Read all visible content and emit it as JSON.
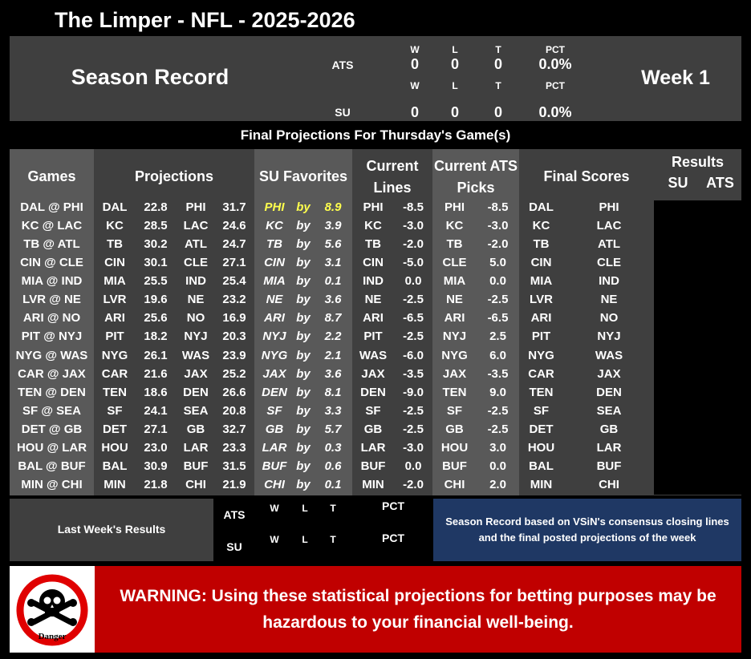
{
  "title": "The Limper - NFL - 2025-2026",
  "season": {
    "label": "Season Record",
    "week": "Week 1",
    "ats": {
      "label": "ATS",
      "w": "0",
      "l": "0",
      "t": "0",
      "pct": "0.0%"
    },
    "su": {
      "label": "SU",
      "w": "0",
      "l": "0",
      "t": "0",
      "pct": "0.0%"
    },
    "col_w": "W",
    "col_l": "L",
    "col_t": "T",
    "col_pct": "PCT"
  },
  "banner": "Final Projections For Thursday's Game(s)",
  "headers": {
    "games": "Games",
    "projections": "Projections",
    "su_favorites": "SU Favorites",
    "current_lines_1": "Current",
    "current_lines_2": "Lines",
    "ats_picks_1": "Current ATS",
    "ats_picks_2": "Picks",
    "final_scores": "Final Scores",
    "results": "Results",
    "results_su": "SU",
    "results_ats": "ATS"
  },
  "by_word": "by",
  "games": [
    {
      "game": "DAL @ PHI",
      "t1": "DAL",
      "s1": "22.8",
      "t2": "PHI",
      "s2": "31.7",
      "fav": "PHI",
      "margin": "8.9",
      "line_team": "PHI",
      "line": "-8.5",
      "pick_team": "PHI",
      "pick": "-8.5",
      "f1": "DAL",
      "f2": "PHI",
      "hl": true
    },
    {
      "game": "KC @ LAC",
      "t1": "KC",
      "s1": "28.5",
      "t2": "LAC",
      "s2": "24.6",
      "fav": "KC",
      "margin": "3.9",
      "line_team": "KC",
      "line": "-3.0",
      "pick_team": "KC",
      "pick": "-3.0",
      "f1": "KC",
      "f2": "LAC"
    },
    {
      "game": "TB @ ATL",
      "t1": "TB",
      "s1": "30.2",
      "t2": "ATL",
      "s2": "24.7",
      "fav": "TB",
      "margin": "5.6",
      "line_team": "TB",
      "line": "-2.0",
      "pick_team": "TB",
      "pick": "-2.0",
      "f1": "TB",
      "f2": "ATL"
    },
    {
      "game": "CIN @ CLE",
      "t1": "CIN",
      "s1": "30.1",
      "t2": "CLE",
      "s2": "27.1",
      "fav": "CIN",
      "margin": "3.1",
      "line_team": "CIN",
      "line": "-5.0",
      "pick_team": "CLE",
      "pick": "5.0",
      "f1": "CIN",
      "f2": "CLE"
    },
    {
      "game": "MIA @ IND",
      "t1": "MIA",
      "s1": "25.5",
      "t2": "IND",
      "s2": "25.4",
      "fav": "MIA",
      "margin": "0.1",
      "line_team": "IND",
      "line": "0.0",
      "pick_team": "MIA",
      "pick": "0.0",
      "f1": "MIA",
      "f2": "IND"
    },
    {
      "game": "LVR @ NE",
      "t1": "LVR",
      "s1": "19.6",
      "t2": "NE",
      "s2": "23.2",
      "fav": "NE",
      "margin": "3.6",
      "line_team": "NE",
      "line": "-2.5",
      "pick_team": "NE",
      "pick": "-2.5",
      "f1": "LVR",
      "f2": "NE"
    },
    {
      "game": "ARI @ NO",
      "t1": "ARI",
      "s1": "25.6",
      "t2": "NO",
      "s2": "16.9",
      "fav": "ARI",
      "margin": "8.7",
      "line_team": "ARI",
      "line": "-6.5",
      "pick_team": "ARI",
      "pick": "-6.5",
      "f1": "ARI",
      "f2": "NO"
    },
    {
      "game": "PIT @ NYJ",
      "t1": "PIT",
      "s1": "18.2",
      "t2": "NYJ",
      "s2": "20.3",
      "fav": "NYJ",
      "margin": "2.2",
      "line_team": "PIT",
      "line": "-2.5",
      "pick_team": "NYJ",
      "pick": "2.5",
      "f1": "PIT",
      "f2": "NYJ"
    },
    {
      "game": "NYG @ WAS",
      "t1": "NYG",
      "s1": "26.1",
      "t2": "WAS",
      "s2": "23.9",
      "fav": "NYG",
      "margin": "2.1",
      "line_team": "WAS",
      "line": "-6.0",
      "pick_team": "NYG",
      "pick": "6.0",
      "f1": "NYG",
      "f2": "WAS"
    },
    {
      "game": "CAR @ JAX",
      "t1": "CAR",
      "s1": "21.6",
      "t2": "JAX",
      "s2": "25.2",
      "fav": "JAX",
      "margin": "3.6",
      "line_team": "JAX",
      "line": "-3.5",
      "pick_team": "JAX",
      "pick": "-3.5",
      "f1": "CAR",
      "f2": "JAX"
    },
    {
      "game": "TEN @ DEN",
      "t1": "TEN",
      "s1": "18.6",
      "t2": "DEN",
      "s2": "26.6",
      "fav": "DEN",
      "margin": "8.1",
      "line_team": "DEN",
      "line": "-9.0",
      "pick_team": "TEN",
      "pick": "9.0",
      "f1": "TEN",
      "f2": "DEN"
    },
    {
      "game": "SF @ SEA",
      "t1": "SF",
      "s1": "24.1",
      "t2": "SEA",
      "s2": "20.8",
      "fav": "SF",
      "margin": "3.3",
      "line_team": "SF",
      "line": "-2.5",
      "pick_team": "SF",
      "pick": "-2.5",
      "f1": "SF",
      "f2": "SEA"
    },
    {
      "game": "DET @ GB",
      "t1": "DET",
      "s1": "27.1",
      "t2": "GB",
      "s2": "32.7",
      "fav": "GB",
      "margin": "5.7",
      "line_team": "GB",
      "line": "-2.5",
      "pick_team": "GB",
      "pick": "-2.5",
      "f1": "DET",
      "f2": "GB"
    },
    {
      "game": "HOU @ LAR",
      "t1": "HOU",
      "s1": "23.0",
      "t2": "LAR",
      "s2": "23.3",
      "fav": "LAR",
      "margin": "0.3",
      "line_team": "LAR",
      "line": "-3.0",
      "pick_team": "HOU",
      "pick": "3.0",
      "f1": "HOU",
      "f2": "LAR"
    },
    {
      "game": "BAL @ BUF",
      "t1": "BAL",
      "s1": "30.9",
      "t2": "BUF",
      "s2": "31.5",
      "fav": "BUF",
      "margin": "0.6",
      "line_team": "BUF",
      "line": "0.0",
      "pick_team": "BUF",
      "pick": "0.0",
      "f1": "BAL",
      "f2": "BUF"
    },
    {
      "game": "MIN @ CHI",
      "t1": "MIN",
      "s1": "21.8",
      "t2": "CHI",
      "s2": "21.9",
      "fav": "CHI",
      "margin": "0.1",
      "line_team": "MIN",
      "line": "-2.0",
      "pick_team": "CHI",
      "pick": "2.0",
      "f1": "MIN",
      "f2": "CHI"
    }
  ],
  "last_week": {
    "label": "Last Week's Results",
    "ats": "ATS",
    "su": "SU",
    "w": "W",
    "l": "L",
    "t": "T",
    "pct": "PCT"
  },
  "note": "Season Record based on VSiN's consensus closing lines and the final posted projections of the week",
  "warning": "WARNING: Using these statistical projections for betting purposes may be hazardous to your financial well-being.",
  "danger_label": "Danger",
  "colors": {
    "panel": "#3f3f3f",
    "band": "#595959",
    "warning": "#c00000",
    "note": "#1f3864",
    "highlight": "#ffff4d"
  }
}
